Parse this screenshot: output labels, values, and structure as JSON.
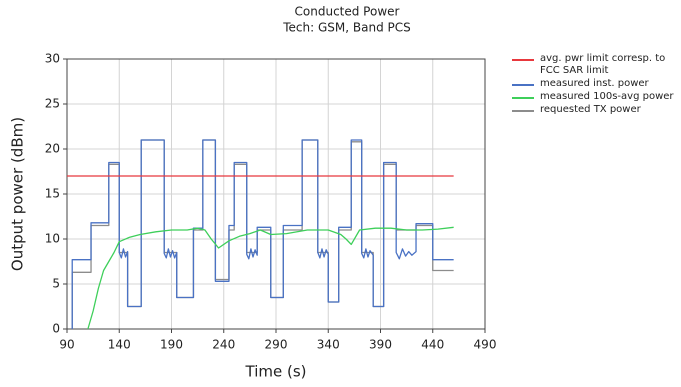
{
  "chart_data": {
    "type": "line",
    "title": "Conducted Power",
    "subtitle": "Tech: GSM, Band PCS",
    "x_label": "Time (s)",
    "y_label": "Output power (dBm)",
    "xlim": [
      90,
      490
    ],
    "xticks": [
      90,
      140,
      190,
      240,
      290,
      340,
      390,
      440,
      490
    ],
    "ylim": [
      0,
      30
    ],
    "yticks": [
      0,
      5,
      10,
      15,
      20,
      25,
      30
    ],
    "grid": true,
    "legend": "right",
    "series": [
      {
        "name": "avg. pwr limit corresp. to FCC SAR limit",
        "color": "#e8383d",
        "x": [
          90,
          460
        ],
        "values": [
          17,
          17
        ]
      },
      {
        "name": "measured inst. power",
        "color": "#4a72c4",
        "x": [
          95,
          95,
          113,
          113,
          130,
          130,
          140,
          140,
          142,
          144,
          146,
          148,
          148,
          161,
          161,
          183,
          183,
          185,
          187,
          189,
          191,
          193,
          195,
          195,
          211,
          211,
          220,
          220,
          232,
          232,
          245,
          245,
          250,
          250,
          262,
          262,
          264,
          266,
          268,
          270,
          272,
          272,
          285,
          285,
          297,
          297,
          315,
          315,
          330,
          330,
          332,
          334,
          336,
          338,
          340,
          340,
          350,
          350,
          362,
          362,
          372,
          372,
          374,
          376,
          378,
          380,
          383,
          383,
          393,
          393,
          405,
          405,
          408,
          411,
          414,
          417,
          420,
          424,
          424,
          440,
          440,
          460
        ],
        "values": [
          0,
          7.7,
          7.7,
          11.8,
          11.8,
          18.5,
          18.5,
          8.5,
          7.9,
          8.9,
          8,
          8.6,
          2.5,
          2.5,
          21,
          21,
          8.4,
          7.9,
          8.9,
          8,
          8.7,
          7.9,
          8.5,
          3.5,
          3.5,
          11.2,
          11.2,
          21,
          21,
          5.3,
          5.3,
          11.5,
          11.5,
          18.5,
          18.5,
          8.3,
          7.8,
          8.9,
          8,
          8.8,
          8.2,
          11.3,
          11.3,
          3.5,
          3.5,
          11.5,
          11.5,
          21,
          21,
          8.5,
          7.9,
          8.9,
          8,
          8.8,
          8.3,
          3,
          3,
          11.3,
          11.3,
          21,
          21,
          8.4,
          7.9,
          8.9,
          8,
          8.7,
          8.2,
          2.5,
          2.5,
          18.5,
          18.5,
          8.5,
          7.8,
          8.9,
          8.1,
          8.6,
          8.2,
          8.6,
          11.7,
          11.7,
          7.7,
          7.7
        ]
      },
      {
        "name": "measured 100s-avg power",
        "color": "#3ecf5a",
        "x": [
          110,
          115,
          120,
          125,
          130,
          135,
          140,
          150,
          160,
          175,
          190,
          205,
          215,
          222,
          228,
          235,
          245,
          255,
          265,
          275,
          285,
          300,
          320,
          340,
          352,
          357,
          362,
          370,
          385,
          400,
          415,
          430,
          445,
          460
        ],
        "values": [
          0,
          2,
          4.5,
          6.5,
          7.5,
          8.5,
          9.7,
          10.2,
          10.5,
          10.8,
          11,
          11,
          11.2,
          11,
          10,
          9,
          9.8,
          10.3,
          10.6,
          11,
          10.5,
          10.6,
          11,
          11,
          10.5,
          10,
          9.4,
          11,
          11.2,
          11.2,
          11,
          11,
          11.1,
          11.3
        ]
      },
      {
        "name": "requested TX power",
        "color": "#8c8c8c",
        "x": [
          95,
          95,
          113,
          113,
          130,
          130,
          140,
          140,
          148,
          148,
          161,
          161,
          183,
          183,
          195,
          195,
          211,
          211,
          220,
          220,
          232,
          232,
          245,
          245,
          250,
          250,
          262,
          262,
          272,
          272,
          285,
          285,
          297,
          297,
          315,
          315,
          330,
          330,
          340,
          340,
          350,
          350,
          362,
          362,
          372,
          372,
          383,
          383,
          393,
          393,
          405,
          405,
          424,
          424,
          440,
          440,
          460
        ],
        "values": [
          0,
          6.3,
          6.3,
          11.5,
          11.5,
          18.3,
          18.3,
          8.5,
          8.5,
          2.5,
          2.5,
          21,
          21,
          8.5,
          8.5,
          3.5,
          3.5,
          11,
          11,
          21,
          21,
          5.5,
          5.5,
          11,
          11,
          18.3,
          18.3,
          8.5,
          8.5,
          11,
          11,
          3.5,
          3.5,
          11,
          11,
          21,
          21,
          8.5,
          8.5,
          3,
          3,
          11,
          11,
          20.8,
          20.8,
          8.5,
          8.5,
          2.5,
          2.5,
          18.3,
          18.3,
          11,
          11,
          11.5,
          11.5,
          6.5,
          6.5
        ]
      }
    ]
  }
}
